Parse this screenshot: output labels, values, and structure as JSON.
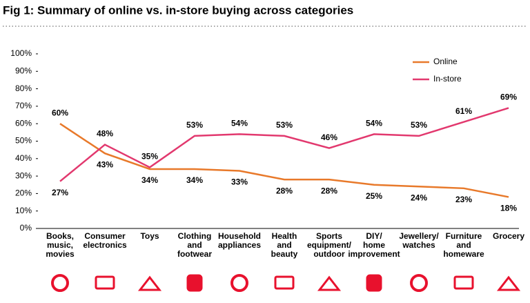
{
  "chart_data": {
    "type": "line",
    "title": "Fig 1: Summary of online vs. in-store buying across categories",
    "categories": [
      [
        "Books,",
        "music,",
        "movies"
      ],
      [
        "Consumer",
        "electronics"
      ],
      [
        "Toys"
      ],
      [
        "Clothing",
        "and",
        "footwear"
      ],
      [
        "Household",
        "appliances"
      ],
      [
        "Health",
        "and",
        "beauty"
      ],
      [
        "Sports",
        "equipment/",
        "outdoor"
      ],
      [
        "DIY/",
        "home",
        "improvement"
      ],
      [
        "Jewellery/",
        "watches"
      ],
      [
        "Furniture",
        "and",
        "homeware"
      ],
      [
        "Grocery"
      ]
    ],
    "series": [
      {
        "name": "Online",
        "color": "#e8792a",
        "values": [
          60,
          43,
          34,
          34,
          33,
          28,
          28,
          25,
          24,
          23,
          18
        ],
        "value_labels": [
          "60%",
          "43%",
          "34%",
          "34%",
          "33%",
          "28%",
          "28%",
          "25%",
          "24%",
          "23%",
          "18%"
        ]
      },
      {
        "name": "In-store",
        "color": "#e2386e",
        "values": [
          27,
          48,
          35,
          53,
          54,
          53,
          46,
          54,
          53,
          61,
          69
        ],
        "value_labels": [
          "27%",
          "48%",
          "35%",
          "53%",
          "54%",
          "53%",
          "46%",
          "54%",
          "53%",
          "61%",
          "69%"
        ]
      }
    ],
    "ylim": [
      0,
      100
    ],
    "yticks": [
      {
        "value": 0,
        "label": "0%"
      },
      {
        "value": 10,
        "label": "10%"
      },
      {
        "value": 20,
        "label": "20%"
      },
      {
        "value": 30,
        "label": "30%"
      },
      {
        "value": 40,
        "label": "40%"
      },
      {
        "value": 50,
        "label": "50%"
      },
      {
        "value": 60,
        "label": "60%"
      },
      {
        "value": 70,
        "label": "70%"
      },
      {
        "value": 80,
        "label": "80%"
      },
      {
        "value": 90,
        "label": "90%"
      },
      {
        "value": 100,
        "label": "100%"
      }
    ],
    "grid": false,
    "legend": "top-right"
  }
}
